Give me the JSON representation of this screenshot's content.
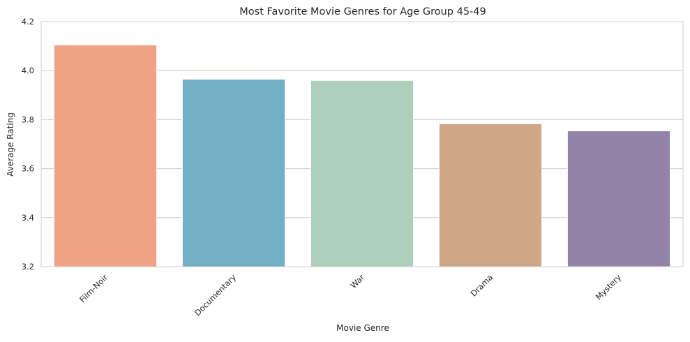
{
  "chart_data": {
    "type": "bar",
    "title": "Most Favorite Movie Genres for Age Group 45-49",
    "xlabel": "Movie Genre",
    "ylabel": "Average Rating",
    "categories": [
      "Film-Noir",
      "Documentary",
      "War",
      "Drama",
      "Mystery"
    ],
    "values": [
      4.105,
      3.965,
      3.96,
      3.783,
      3.754
    ],
    "colors": [
      "#ee a386",
      "#72afc4",
      "#aecfbc",
      "#cea688",
      "#9483a8"
    ],
    "ylim": [
      3.2,
      4.2
    ],
    "yticks": [
      "3.2",
      "3.4",
      "3.6",
      "3.8",
      "4.0",
      "4.2"
    ],
    "xtick_rotation": 45,
    "grid": "y",
    "legend": "none"
  }
}
